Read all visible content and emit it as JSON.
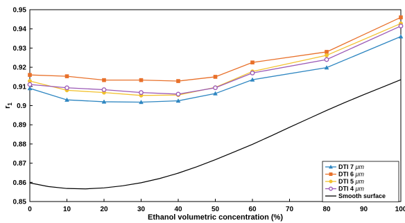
{
  "chart_data": {
    "type": "line",
    "xlabel": "Ethanol volumetric concentration (%)",
    "ylabel": "r",
    "ylabel_sub": "1",
    "xlim": [
      0,
      100
    ],
    "ylim": [
      0.85,
      0.95
    ],
    "x_ticks": [
      0,
      10,
      20,
      30,
      40,
      50,
      60,
      70,
      80,
      90,
      100
    ],
    "y_ticks": [
      0.85,
      0.86,
      0.87,
      0.88,
      0.89,
      0.9,
      0.91,
      0.92,
      0.93,
      0.94,
      0.95
    ],
    "x_tick_labels": [
      "0",
      "10",
      "20",
      "30",
      "40",
      "50",
      "60",
      "70",
      "80",
      "90",
      "100"
    ],
    "y_tick_labels": [
      "0.85",
      "0.86",
      "0.87",
      "0.88",
      "0.89",
      "0.9",
      "0.91",
      "0.92",
      "0.93",
      "0.94",
      "0.95"
    ],
    "grid": false,
    "legend_position": "bottom-right",
    "series": [
      {
        "name": "DTI 7",
        "name_unit": "μm",
        "color": "#2E86C1",
        "marker": "triangle",
        "x": [
          0,
          10,
          20,
          30,
          40,
          50,
          60,
          80,
          100
        ],
        "y": [
          0.909,
          0.903,
          0.902,
          0.9018,
          0.9025,
          0.9063,
          0.9135,
          0.9198,
          0.936
        ]
      },
      {
        "name": "DTI 6",
        "name_unit": "μm",
        "color": "#E8702A",
        "marker": "square",
        "x": [
          0,
          10,
          20,
          30,
          40,
          50,
          60,
          80,
          100
        ],
        "y": [
          0.916,
          0.9153,
          0.9133,
          0.9133,
          0.9128,
          0.915,
          0.9225,
          0.928,
          0.946
        ]
      },
      {
        "name": "DTI 5",
        "name_unit": "μm",
        "color": "#F2C12E",
        "marker": "circle",
        "x": [
          0,
          10,
          20,
          30,
          40,
          50,
          60,
          80,
          100
        ],
        "y": [
          0.9128,
          0.908,
          0.9068,
          0.9053,
          0.9055,
          0.9095,
          0.9178,
          0.9262,
          0.9428
        ]
      },
      {
        "name": "DTI 4",
        "name_unit": "μm",
        "color": "#9B59B6",
        "marker": "circle-open",
        "x": [
          0,
          10,
          20,
          30,
          40,
          50,
          60,
          80,
          100
        ],
        "y": [
          0.911,
          0.9093,
          0.9083,
          0.9068,
          0.906,
          0.9093,
          0.917,
          0.924,
          0.9415
        ]
      },
      {
        "name": "Smooth surface",
        "name_unit": "",
        "color": "#000000",
        "marker": "none",
        "x": [
          0,
          5,
          10,
          15,
          20,
          25,
          30,
          35,
          40,
          45,
          50,
          55,
          60,
          65,
          70,
          75,
          80,
          85,
          90,
          95,
          100
        ],
        "y": [
          0.8597,
          0.8578,
          0.8568,
          0.8566,
          0.8571,
          0.8582,
          0.8598,
          0.862,
          0.8648,
          0.8681,
          0.8718,
          0.8758,
          0.8798,
          0.8842,
          0.8887,
          0.8931,
          0.8975,
          0.9017,
          0.9057,
          0.9096,
          0.9135
        ]
      }
    ]
  }
}
